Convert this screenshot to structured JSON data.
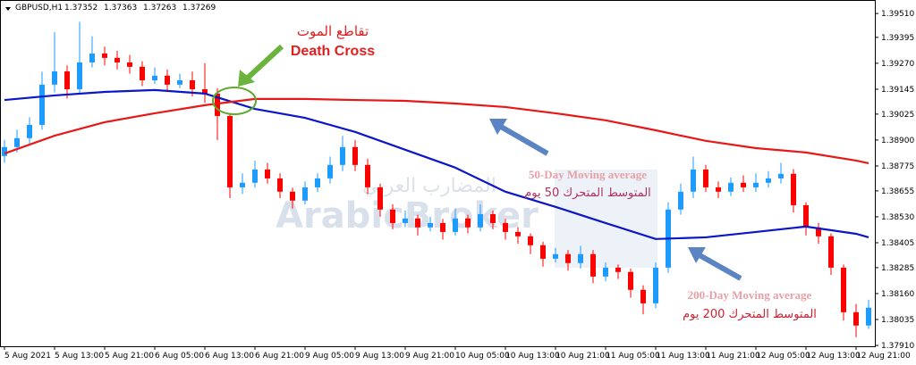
{
  "chart_data": {
    "type": "candlestick",
    "symbol": "GBPUSD,H1",
    "quote": [
      1.37352,
      1.37363,
      1.37263,
      1.37269
    ],
    "up_color": "#1e9bff",
    "down_color": "#ff0000",
    "ylim": [
      1.37906,
      1.39575
    ],
    "yticks": [
      {
        "value": 1.3951,
        "label": "1.39510"
      },
      1.39395,
      {
        "value": 1.3927,
        "label": "1.39270"
      },
      1.39145,
      1.39025,
      {
        "value": 1.389,
        "label": "1.38900"
      },
      1.38775,
      1.38655,
      {
        "value": 1.3853,
        "label": "1.38530"
      },
      1.38405,
      1.38285,
      {
        "value": 1.3816,
        "label": "1.38160"
      },
      1.38035,
      {
        "value": 1.3791,
        "label": "1.37910"
      }
    ],
    "categories": [
      "5 Aug 2021",
      null,
      null,
      null,
      "5 Aug 13:00",
      null,
      null,
      null,
      "5 Aug 21:00",
      null,
      null,
      null,
      "6 Aug 05:00",
      null,
      null,
      null,
      "6 Aug 13:00",
      null,
      null,
      null,
      "6 Aug 21:00",
      null,
      null,
      null,
      "9 Aug 05:00",
      null,
      null,
      null,
      "9 Aug 13:00",
      null,
      null,
      null,
      "9 Aug 21:00",
      null,
      null,
      null,
      "10 Aug 05:00",
      null,
      null,
      null,
      "10 Aug 13:00",
      null,
      null,
      null,
      "10 Aug 21:00",
      null,
      null,
      null,
      "11 Aug 05:00",
      null,
      null,
      null,
      "11 Aug 13:00",
      null,
      null,
      null,
      "11 Aug 21:00",
      null,
      null,
      null,
      "12 Aug 05:00",
      null,
      null,
      null,
      "12 Aug 13:00",
      null,
      null,
      null,
      "12 Aug 21:00",
      null
    ],
    "ohlc": [
      [
        1.38823,
        1.389,
        1.3879,
        1.38866
      ],
      [
        1.38866,
        1.3895,
        1.3884,
        1.38909
      ],
      [
        1.38909,
        1.3901,
        1.3888,
        1.38973
      ],
      [
        1.38973,
        1.3923,
        1.3895,
        1.39167
      ],
      [
        1.39167,
        1.3942,
        1.3913,
        1.39231
      ],
      [
        1.39231,
        1.3926,
        1.391,
        1.39145
      ],
      [
        1.39145,
        1.3947,
        1.3912,
        1.39274
      ],
      [
        1.39274,
        1.394,
        1.3925,
        1.39317
      ],
      [
        1.39317,
        1.3935,
        1.3926,
        1.39296
      ],
      [
        1.39296,
        1.3933,
        1.3924,
        1.39274
      ],
      [
        1.39274,
        1.3931,
        1.3922,
        1.39253
      ],
      [
        1.39253,
        1.3928,
        1.3916,
        1.39188
      ],
      [
        1.39188,
        1.3925,
        1.3917,
        1.3921
      ],
      [
        1.3921,
        1.3924,
        1.3914,
        1.39167
      ],
      [
        1.39167,
        1.3922,
        1.3915,
        1.39188
      ],
      [
        1.39188,
        1.3923,
        1.3911,
        1.39145
      ],
      [
        1.39145,
        1.3927,
        1.3908,
        1.39124
      ],
      [
        1.39124,
        1.3915,
        1.389,
        1.39016
      ],
      [
        1.39016,
        1.3903,
        1.3862,
        1.38672
      ],
      [
        1.38672,
        1.3874,
        1.3864,
        1.38694
      ],
      [
        1.38694,
        1.388,
        1.3867,
        1.38758
      ],
      [
        1.38758,
        1.3879,
        1.3869,
        1.38715
      ],
      [
        1.38715,
        1.3874,
        1.3862,
        1.38651
      ],
      [
        1.38651,
        1.3867,
        1.3857,
        1.38608
      ],
      [
        1.38608,
        1.387,
        1.3859,
        1.38672
      ],
      [
        1.38672,
        1.3874,
        1.3865,
        1.38715
      ],
      [
        1.38715,
        1.3882,
        1.3869,
        1.3878
      ],
      [
        1.3878,
        1.3892,
        1.3875,
        1.38866
      ],
      [
        1.38866,
        1.389,
        1.3875,
        1.3878
      ],
      [
        1.3878,
        1.3881,
        1.3864,
        1.38672
      ],
      [
        1.38672,
        1.3869,
        1.3853,
        1.38565
      ],
      [
        1.38565,
        1.3859,
        1.3847,
        1.385
      ],
      [
        1.385,
        1.3856,
        1.3848,
        1.38522
      ],
      [
        1.38522,
        1.3854,
        1.3844,
        1.38479
      ],
      [
        1.38479,
        1.3853,
        1.3846,
        1.385
      ],
      [
        1.385,
        1.3852,
        1.3842,
        1.38457
      ],
      [
        1.38457,
        1.3857,
        1.3844,
        1.38522
      ],
      [
        1.38522,
        1.3854,
        1.3845,
        1.38479
      ],
      [
        1.38479,
        1.3859,
        1.3846,
        1.38543
      ],
      [
        1.38543,
        1.3856,
        1.3847,
        1.385
      ],
      [
        1.385,
        1.3852,
        1.3842,
        1.38457
      ],
      [
        1.38457,
        1.3848,
        1.384,
        1.38436
      ],
      [
        1.38436,
        1.3845,
        1.3835,
        1.38393
      ],
      [
        1.38393,
        1.3841,
        1.3829,
        1.38328
      ],
      [
        1.38328,
        1.3838,
        1.3831,
        1.3835
      ],
      [
        1.3835,
        1.3837,
        1.3827,
        1.38307
      ],
      [
        1.38307,
        1.3839,
        1.3828,
        1.3835
      ],
      [
        1.3835,
        1.3837,
        1.3821,
        1.38242
      ],
      [
        1.38242,
        1.3831,
        1.3822,
        1.38285
      ],
      [
        1.38285,
        1.383,
        1.3823,
        1.38264
      ],
      [
        1.38264,
        1.3828,
        1.3814,
        1.38178
      ],
      [
        1.38178,
        1.382,
        1.3806,
        1.38113
      ],
      [
        1.38113,
        1.3831,
        1.3809,
        1.38285
      ],
      [
        1.38285,
        1.386,
        1.3826,
        1.38565
      ],
      [
        1.38565,
        1.3869,
        1.3854,
        1.38651
      ],
      [
        1.38651,
        1.3882,
        1.3862,
        1.38758
      ],
      [
        1.38758,
        1.3878,
        1.3865,
        1.38672
      ],
      [
        1.38672,
        1.387,
        1.3862,
        1.38651
      ],
      [
        1.38651,
        1.3872,
        1.3863,
        1.38694
      ],
      [
        1.38694,
        1.3873,
        1.3865,
        1.38672
      ],
      [
        1.38672,
        1.3874,
        1.3865,
        1.38694
      ],
      [
        1.38694,
        1.3875,
        1.3867,
        1.38715
      ],
      [
        1.38715,
        1.3879,
        1.3869,
        1.38737
      ],
      [
        1.38737,
        1.3876,
        1.3855,
        1.38586
      ],
      [
        1.38586,
        1.386,
        1.3844,
        1.38479
      ],
      [
        1.38479,
        1.385,
        1.384,
        1.38436
      ],
      [
        1.38436,
        1.3845,
        1.3825,
        1.38285
      ],
      [
        1.38285,
        1.383,
        1.3803,
        1.3807
      ],
      [
        1.3807,
        1.3811,
        1.3795,
        1.38006
      ],
      [
        1.38006,
        1.3813,
        1.3799,
        1.38092
      ]
    ],
    "series": [
      {
        "color": "#0a16c8",
        "x": [
          0,
          4,
          8,
          12,
          16,
          20,
          24,
          28,
          32,
          36,
          40,
          44,
          48,
          52,
          56,
          60,
          64,
          68,
          69
        ],
        "values": [
          1.39093,
          1.39115,
          1.39132,
          1.39141,
          1.39124,
          1.3905,
          1.39007,
          1.38939,
          1.38853,
          1.38767,
          1.38651,
          1.38578,
          1.385,
          1.38423,
          1.38431,
          1.38457,
          1.38483,
          1.38448,
          1.38431
        ]
      },
      {
        "color": "#e81818",
        "x": [
          0,
          4,
          8,
          12,
          16,
          20,
          24,
          28,
          32,
          36,
          40,
          44,
          48,
          52,
          56,
          60,
          64,
          68,
          69
        ],
        "values": [
          1.38835,
          1.38921,
          1.38986,
          1.39029,
          1.39068,
          1.39098,
          1.39098,
          1.39093,
          1.39089,
          1.39076,
          1.39059,
          1.39029,
          1.38995,
          1.38947,
          1.38896,
          1.38861,
          1.3884,
          1.38801,
          1.38788
        ]
      }
    ],
    "annotations": {
      "death_cross_ar": "تقاطع الموت",
      "death_cross_en": "Death Cross",
      "ma50_en": "50-Day Moving average",
      "ma50_ar": "المتوسط المتحرك 50 يوم",
      "ma200_en": "200-Day Moving average",
      "ma200_ar": "المتوسط المتحرك 200 يوم",
      "watermark_ar": "المضارب العربي",
      "watermark_en": "ArabicBroker"
    }
  }
}
